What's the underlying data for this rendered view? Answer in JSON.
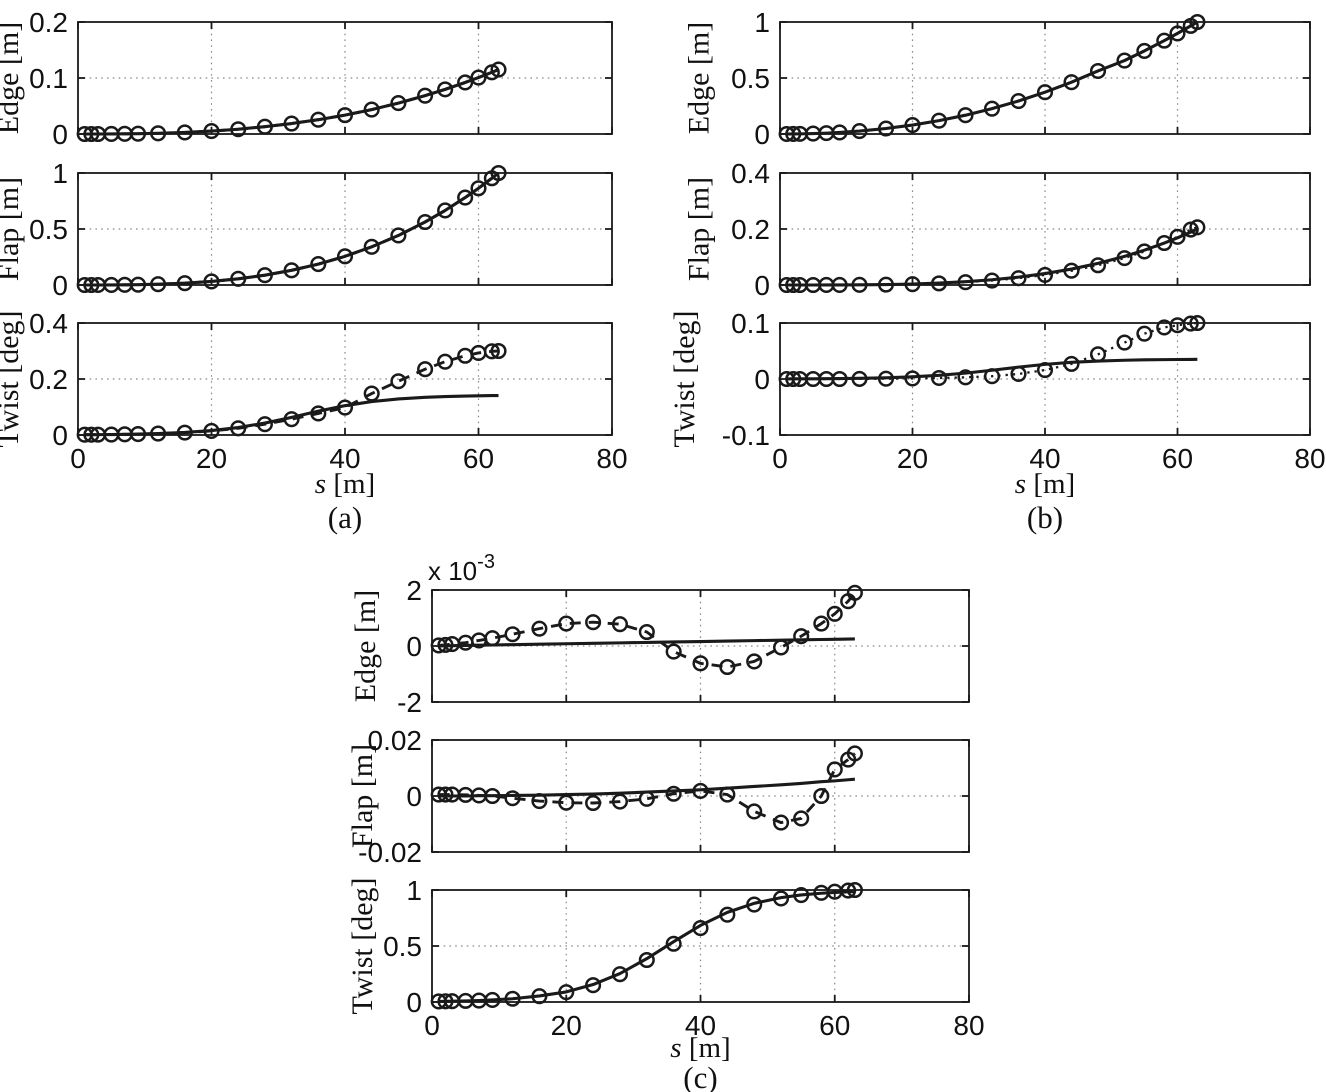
{
  "figure_title": "",
  "colors": {
    "line": "#1a1a1a",
    "grid": "#8a8a8a",
    "background": "#ffffff"
  },
  "chart_data": {
    "type": "line",
    "x_label_variable": "s",
    "x_label_unit": "[m]",
    "xlim": [
      0,
      80
    ],
    "x_ticks": [
      0,
      20,
      40,
      60,
      80
    ],
    "x_tick_labels": [
      "0",
      "20",
      "40",
      "60",
      "80"
    ],
    "x": [
      1,
      2,
      3,
      5,
      7,
      9,
      12,
      16,
      20,
      24,
      28,
      32,
      36,
      40,
      44,
      48,
      52,
      55,
      58,
      60,
      62,
      63
    ],
    "groups": [
      {
        "id": "a",
        "caption": "(a)"
      },
      {
        "id": "b",
        "caption": "(b)"
      },
      {
        "id": "c",
        "caption": "(c)"
      }
    ],
    "subplots": [
      {
        "id": "a-edge",
        "group": "a",
        "row": 0,
        "ylabel": "Edge [m]",
        "ylim": [
          0,
          0.2
        ],
        "yticks": [
          0,
          0.1,
          0.2
        ],
        "ytick_labels": [
          "0",
          "0.1",
          "0.2"
        ],
        "show_x_axis": false,
        "exponent_label": null,
        "series": [
          {
            "name": "solid-line",
            "style": "solid",
            "marker": false,
            "y": [
              0,
              0,
              0,
              0.0001,
              0.0003,
              0.0006,
              0.0013,
              0.0028,
              0.0052,
              0.0085,
              0.0131,
              0.0187,
              0.0255,
              0.0337,
              0.0436,
              0.0552,
              0.0685,
              0.0797,
              0.092,
              0.1008,
              0.1101,
              0.115
            ]
          },
          {
            "name": "circles",
            "style": "dashed",
            "marker": true,
            "y": [
              0,
              0,
              0,
              0.0001,
              0.0003,
              0.0006,
              0.0013,
              0.0028,
              0.0052,
              0.0085,
              0.0131,
              0.0187,
              0.0255,
              0.0337,
              0.0436,
              0.0552,
              0.0685,
              0.0797,
              0.092,
              0.1008,
              0.1101,
              0.115
            ]
          }
        ]
      },
      {
        "id": "a-flap",
        "group": "a",
        "row": 1,
        "ylabel": "Flap [m]",
        "ylim": [
          0,
          1
        ],
        "yticks": [
          0,
          0.5,
          1
        ],
        "ytick_labels": [
          "0",
          "0.5",
          "1"
        ],
        "show_x_axis": false,
        "exponent_label": null,
        "series": [
          {
            "name": "solid-line",
            "style": "solid",
            "marker": false,
            "y": [
              0,
              0,
              0.0001,
              0.0005,
              0.0014,
              0.0029,
              0.0069,
              0.0164,
              0.032,
              0.0553,
              0.0878,
              0.1311,
              0.1866,
              0.256,
              0.3407,
              0.4424,
              0.5624,
              0.6653,
              0.7805,
              0.8638,
              0.9531,
              1
            ]
          },
          {
            "name": "circles",
            "style": "dashed",
            "marker": true,
            "y": [
              0,
              0,
              0.0001,
              0.0005,
              0.0014,
              0.0029,
              0.0069,
              0.0164,
              0.032,
              0.0553,
              0.0878,
              0.1311,
              0.1866,
              0.256,
              0.3407,
              0.4424,
              0.5624,
              0.6653,
              0.7805,
              0.8638,
              0.9531,
              1
            ]
          }
        ]
      },
      {
        "id": "a-twist",
        "group": "a",
        "row": 2,
        "ylabel": "Twist [deg]",
        "ylim": [
          0,
          0.4
        ],
        "yticks": [
          0,
          0.2,
          0.4
        ],
        "ytick_labels": [
          "0",
          "0.2",
          "0.4"
        ],
        "show_x_axis": true,
        "exponent_label": null,
        "series": [
          {
            "name": "solid-line",
            "style": "solid",
            "marker": false,
            "y": [
              0.001,
              0.0011,
              0.0013,
              0.0017,
              0.0023,
              0.0032,
              0.0052,
              0.0091,
              0.0158,
              0.0267,
              0.0426,
              0.063,
              0.0851,
              0.1048,
              0.1194,
              0.1289,
              0.1347,
              0.1374,
              0.1392,
              0.14,
              0.1407,
              0.141
            ]
          },
          {
            "name": "circles",
            "style": "dashed",
            "marker": true,
            "y": [
              0.001,
              0.0011,
              0.0013,
              0.0017,
              0.0023,
              0.0032,
              0.005,
              0.0085,
              0.0145,
              0.024,
              0.0385,
              0.0565,
              0.077,
              0.098,
              0.148,
              0.192,
              0.235,
              0.262,
              0.283,
              0.293,
              0.299,
              0.3
            ]
          }
        ]
      },
      {
        "id": "b-edge",
        "group": "b",
        "row": 0,
        "ylabel": "Edge [m]",
        "ylim": [
          0,
          1
        ],
        "yticks": [
          0,
          0.5,
          1
        ],
        "ytick_labels": [
          "0",
          "0.5",
          "1"
        ],
        "show_x_axis": false,
        "exponent_label": null,
        "series": [
          {
            "name": "solid-line",
            "style": "solid",
            "marker": false,
            "y": [
              0.0001,
              0.0005,
              0.0012,
              0.0038,
              0.0079,
              0.0136,
              0.0259,
              0.049,
              0.0798,
              0.1192,
              0.1679,
              0.2262,
              0.2945,
              0.3732,
              0.4625,
              0.5626,
              0.6557,
              0.7417,
              0.8336,
              0.8983,
              0.9654,
              1
            ]
          },
          {
            "name": "circles",
            "style": "dotted",
            "marker": true,
            "y": [
              0.0001,
              0.0005,
              0.0012,
              0.0038,
              0.0079,
              0.0136,
              0.0259,
              0.049,
              0.0798,
              0.1192,
              0.1679,
              0.2262,
              0.2945,
              0.3732,
              0.4625,
              0.5626,
              0.6557,
              0.7417,
              0.8336,
              0.8983,
              0.9654,
              1
            ]
          }
        ]
      },
      {
        "id": "b-flap",
        "group": "b",
        "row": 1,
        "ylabel": "Flap [m]",
        "ylim": [
          0,
          0.4
        ],
        "yticks": [
          0,
          0.2,
          0.4
        ],
        "ytick_labels": [
          "0",
          "0.2",
          "0.4"
        ],
        "show_x_axis": false,
        "exponent_label": null,
        "series": [
          {
            "name": "solid-line",
            "style": "solid",
            "marker": false,
            "y": [
              0,
              0,
              0,
              0,
              0.0001,
              0.0002,
              0.0006,
              0.0016,
              0.0036,
              0.0069,
              0.0118,
              0.0187,
              0.0281,
              0.0408,
              0.0569,
              0.0772,
              0.1022,
              0.1243,
              0.1497,
              0.1686,
              0.1891,
              0.2
            ]
          },
          {
            "name": "circles",
            "style": "dotted",
            "marker": true,
            "y": [
              0,
              0,
              0,
              0,
              0.0001,
              0.0002,
              0.0005,
              0.0013,
              0.003,
              0.0058,
              0.01,
              0.016,
              0.0245,
              0.036,
              0.051,
              0.0705,
              0.096,
              0.12,
              0.15,
              0.172,
              0.198,
              0.206
            ]
          }
        ]
      },
      {
        "id": "b-twist",
        "group": "b",
        "row": 2,
        "ylabel": "Twist [deg]",
        "ylim": [
          -0.1,
          0.1
        ],
        "yticks": [
          -0.1,
          0,
          0.1
        ],
        "ytick_labels": [
          "-0.1",
          "0",
          "0.1"
        ],
        "show_x_axis": true,
        "exponent_label": null,
        "series": [
          {
            "name": "solid-line",
            "style": "solid",
            "marker": false,
            "y": [
              0.0002,
              0.0003,
              0.0003,
              0.0004,
              0.0006,
              0.0008,
              0.0013,
              0.0022,
              0.0039,
              0.0066,
              0.0105,
              0.0156,
              0.0212,
              0.0261,
              0.0298,
              0.0321,
              0.0335,
              0.0342,
              0.0346,
              0.0348,
              0.035,
              0.0351
            ]
          },
          {
            "name": "circles",
            "style": "dotted",
            "marker": true,
            "y": [
              0,
              0,
              0,
              0,
              0,
              0,
              0.0002,
              0.0005,
              0.001,
              0.0018,
              0.003,
              0.005,
              0.009,
              0.016,
              0.027,
              0.044,
              0.065,
              0.081,
              0.092,
              0.096,
              0.099,
              0.1
            ]
          }
        ]
      },
      {
        "id": "c-edge",
        "group": "c",
        "row": 0,
        "ylabel": "Edge [m]",
        "ylim": [
          -2,
          2
        ],
        "yticks": [
          -2,
          0,
          2
        ],
        "ytick_labels": [
          "-2",
          "0",
          "2"
        ],
        "show_x_axis": false,
        "exponent_label": "x 10^-3",
        "series": [
          {
            "name": "solid-line",
            "style": "solid",
            "marker": false,
            "y": [
              0.004,
              0.008,
              0.012,
              0.02,
              0.028,
              0.036,
              0.048,
              0.064,
              0.08,
              0.096,
              0.112,
              0.128,
              0.144,
              0.16,
              0.176,
              0.192,
              0.208,
              0.22,
              0.232,
              0.24,
              0.248,
              0.252
            ]
          },
          {
            "name": "circles",
            "style": "dashed",
            "marker": true,
            "y": [
              0.02,
              0.04,
              0.07,
              0.12,
              0.2,
              0.28,
              0.42,
              0.62,
              0.8,
              0.85,
              0.78,
              0.5,
              -0.2,
              -0.62,
              -0.75,
              -0.55,
              -0.05,
              0.35,
              0.8,
              1.15,
              1.6,
              1.9
            ]
          }
        ]
      },
      {
        "id": "c-flap",
        "group": "c",
        "row": 1,
        "ylabel": "Flap [m]",
        "ylim": [
          -0.02,
          0.02
        ],
        "yticks": [
          -0.02,
          0,
          0.02
        ],
        "ytick_labels": [
          "-0.02",
          "0",
          "0.02"
        ],
        "show_x_axis": false,
        "exponent_label": null,
        "series": [
          {
            "name": "solid-line",
            "style": "solid",
            "marker": false,
            "y": [
              0,
              0,
              0,
              0,
              0.0001,
              0.0001,
              0.0002,
              0.0003,
              0.0005,
              0.0007,
              0.001,
              0.0014,
              0.0018,
              0.0022,
              0.0028,
              0.0034,
              0.004,
              0.0045,
              0.0051,
              0.0054,
              0.0058,
              0.006
            ]
          },
          {
            "name": "circles",
            "style": "dashed",
            "marker": true,
            "y": [
              0.0005,
              0.0005,
              0.0005,
              0.0004,
              0.0002,
              0,
              -0.0008,
              -0.0018,
              -0.0024,
              -0.0025,
              -0.002,
              -0.001,
              0.0008,
              0.0018,
              0.0005,
              -0.0055,
              -0.0095,
              -0.008,
              0,
              0.0095,
              0.013,
              0.0152
            ]
          }
        ]
      },
      {
        "id": "c-twist",
        "group": "c",
        "row": 2,
        "ylabel": "Twist [deg]",
        "ylim": [
          0,
          1
        ],
        "yticks": [
          0,
          0.5,
          1
        ],
        "ytick_labels": [
          "0",
          "0.5",
          "1"
        ],
        "show_x_axis": true,
        "exponent_label": null,
        "series": [
          {
            "name": "solid-line",
            "style": "solid",
            "marker": false,
            "y": [
              0.005,
              0.006,
              0.007,
              0.01,
              0.013,
              0.018,
              0.029,
              0.054,
              0.09,
              0.156,
              0.254,
              0.387,
              0.538,
              0.684,
              0.8,
              0.881,
              0.932,
              0.956,
              0.971,
              0.978,
              0.984,
              0.986
            ]
          },
          {
            "name": "circles",
            "style": "none",
            "marker": true,
            "y": [
              0.005,
              0.006,
              0.007,
              0.01,
              0.013,
              0.018,
              0.029,
              0.052,
              0.088,
              0.15,
              0.248,
              0.375,
              0.52,
              0.66,
              0.78,
              0.87,
              0.925,
              0.955,
              0.975,
              0.985,
              0.995,
              1
            ]
          }
        ]
      }
    ]
  }
}
